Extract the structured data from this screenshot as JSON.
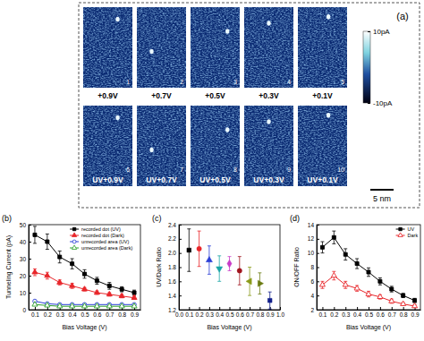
{
  "chart_data": [
    {
      "type": "image_grid",
      "panel_label": "(a)",
      "panels": [
        {
          "number": "1",
          "caption": "+0.9V"
        },
        {
          "number": "2",
          "caption": "+0.7V"
        },
        {
          "number": "3",
          "caption": "+0.5V"
        },
        {
          "number": "4",
          "caption": "+0.3V"
        },
        {
          "number": "5",
          "caption": "+0.1V"
        },
        {
          "number": "6",
          "caption": "UV+0.9V"
        },
        {
          "number": "7",
          "caption": "UV+0.7V"
        },
        {
          "number": "8",
          "caption": "UV+0.5V"
        },
        {
          "number": "9",
          "caption": "UV+0.3V"
        },
        {
          "number": "10",
          "caption": "UV+0.1V"
        }
      ],
      "colorbar": {
        "range": [
          -10,
          10
        ],
        "ticks": [
          {
            "value": 10,
            "label": "10pA"
          },
          {
            "value": -10,
            "label": "-10pA"
          }
        ]
      },
      "scale_bar": "5 nm"
    },
    {
      "type": "line",
      "panel_label": "(b)",
      "x_label": "Bias Voltage (V)",
      "y_label": "Tunneling Current (pA)",
      "x": [
        0.1,
        0.2,
        0.3,
        0.4,
        0.5,
        0.6,
        0.7,
        0.8,
        0.9
      ],
      "xlim": [
        0.05,
        0.95
      ],
      "xticks": [
        0.1,
        0.2,
        0.3,
        0.4,
        0.5,
        0.6,
        0.7,
        0.8,
        0.9
      ],
      "ylim": [
        0,
        50
      ],
      "yticks": [
        0,
        10,
        20,
        30,
        40,
        50
      ],
      "legend": "upper right",
      "series": [
        {
          "name": "recorded dot (UV)",
          "color": "#000000",
          "marker": "square",
          "values": [
            44,
            40,
            31,
            27,
            21,
            17,
            14,
            12,
            10
          ],
          "errors": [
            5,
            4.5,
            3.5,
            3,
            2.5,
            2,
            2,
            1.5,
            1.5
          ]
        },
        {
          "name": "recorded dot (Dark)",
          "color": "#e8262a",
          "marker": "triangle",
          "values": [
            22,
            20,
            16,
            14,
            12,
            10,
            9,
            8,
            7
          ],
          "errors": [
            2,
            2,
            1.5,
            1.5,
            1,
            1,
            1,
            1,
            1
          ]
        },
        {
          "name": "unrecorded area (UV)",
          "color": "#2a3fd6",
          "marker": "open-circle",
          "values": [
            5,
            3.5,
            3,
            3,
            3,
            3,
            3,
            3,
            3
          ]
        },
        {
          "name": "unrecorded area (Dark)",
          "color": "#2ca02c",
          "marker": "open-triangle",
          "values": [
            3,
            2.5,
            2,
            2,
            2,
            2,
            2,
            2,
            2
          ]
        }
      ]
    },
    {
      "type": "scatter",
      "panel_label": "(c)",
      "x_label": "Bias Voltage (V)",
      "y_label": "UV/Dark Ratio",
      "x": [
        0.1,
        0.2,
        0.3,
        0.4,
        0.5,
        0.6,
        0.7,
        0.8,
        0.9
      ],
      "xlim": [
        0,
        1
      ],
      "xticks": [
        {
          "value": 0,
          "label": "0.0"
        },
        0.1,
        0.2,
        0.3,
        0.4,
        0.5,
        0.6,
        0.7,
        0.8,
        0.9,
        {
          "value": 1,
          "label": "1.0"
        }
      ],
      "ylim": [
        1.2,
        2.4
      ],
      "yticks": [
        1.2,
        1.4,
        1.6,
        1.8,
        {
          "value": 2,
          "label": "2.0"
        },
        2.2,
        2.4
      ],
      "values": [
        2.04,
        2.06,
        1.9,
        1.78,
        1.85,
        1.75,
        1.6,
        1.57,
        1.33
      ],
      "errors": [
        0.3,
        0.25,
        0.2,
        0.18,
        0.1,
        0.2,
        0.2,
        0.15,
        0.12
      ],
      "colors": [
        "#000000",
        "#e8262a",
        "#2a3fd6",
        "#1aa6a6",
        "#c83cc8",
        "#a0141e",
        "#8a9a1a",
        "#6a7a10",
        "#101e8a"
      ]
    },
    {
      "type": "line",
      "panel_label": "(d)",
      "x_label": "Bias Voltage (V)",
      "y_label": "ON/OFF Ratio",
      "x": [
        0.1,
        0.2,
        0.3,
        0.4,
        0.5,
        0.6,
        0.7,
        0.8,
        0.9
      ],
      "xlim": [
        0.05,
        0.95
      ],
      "xticks": [
        0.1,
        0.2,
        0.3,
        0.4,
        0.5,
        0.6,
        0.7,
        0.8,
        0.9
      ],
      "ylim": [
        2,
        14
      ],
      "yticks": [
        2,
        4,
        6,
        8,
        10,
        12,
        14
      ],
      "legend": "upper right",
      "series": [
        {
          "name": "UV",
          "color": "#000000",
          "marker": "square",
          "values": [
            10.8,
            12.2,
            9.8,
            8.5,
            7.3,
            6.0,
            4.9,
            4.0,
            3.3
          ],
          "errors": [
            0.8,
            0.9,
            0.8,
            0.7,
            0.6,
            0.5,
            0.4,
            0.3,
            0.3
          ]
        },
        {
          "name": "Dark",
          "color": "#e8262a",
          "marker": "open-triangle",
          "values": [
            5.5,
            6.8,
            5.5,
            5.0,
            4.2,
            3.8,
            3.2,
            2.8,
            2.5
          ],
          "errors": [
            0.5,
            0.6,
            0.5,
            0.4,
            0.4,
            0.3,
            0.3,
            0.2,
            0.2
          ]
        }
      ]
    }
  ]
}
